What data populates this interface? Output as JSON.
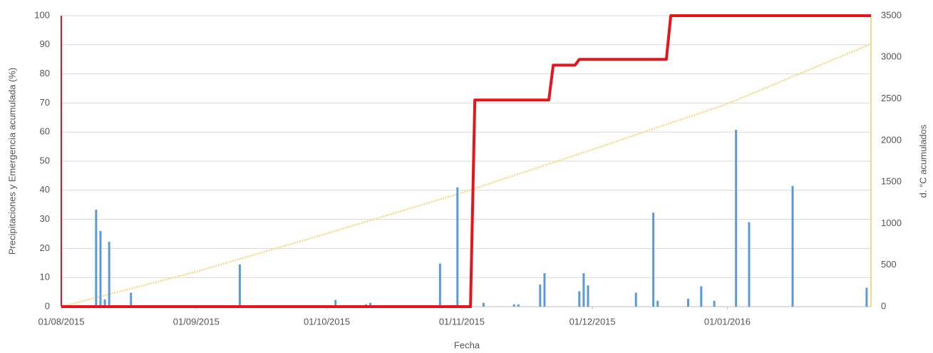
{
  "chart_data": {
    "type": "combo",
    "xlabel": "Fecha",
    "ylabel": "Precipitaciones y Emergencia acumulada (%)",
    "y2label": "d. °C acumulados",
    "xlim": [
      "01/08/2015",
      "03/02/2016"
    ],
    "xticks": [
      "01/08/2015",
      "01/09/2015",
      "01/10/2015",
      "01/11/2015",
      "01/12/2015",
      "01/01/2016"
    ],
    "ylim": [
      0,
      100
    ],
    "yticks": [
      0,
      10,
      20,
      30,
      40,
      50,
      60,
      70,
      80,
      90,
      100
    ],
    "y2lim": [
      0,
      3500
    ],
    "y2ticks": [
      0,
      500,
      1000,
      1500,
      2000,
      2500,
      3000,
      3500
    ],
    "grid": true,
    "series": [
      {
        "type": "bar",
        "color": "#5b9bd5",
        "x": [
          "09/08/2015",
          "10/08/2015",
          "11/08/2015",
          "12/08/2015",
          "17/08/2015",
          "11/09/2015",
          "03/10/2015",
          "10/10/2015",
          "11/10/2015",
          "27/10/2015",
          "31/10/2015",
          "06/11/2015",
          "13/11/2015",
          "14/11/2015",
          "19/11/2015",
          "20/11/2015",
          "28/11/2015",
          "29/11/2015",
          "30/11/2015",
          "11/12/2015",
          "15/12/2015",
          "16/12/2015",
          "23/12/2015",
          "26/12/2015",
          "29/12/2015",
          "03/01/2016",
          "06/01/2016",
          "16/01/2016",
          "02/02/2016"
        ],
        "values": [
          33.3,
          26,
          2.5,
          22.3,
          4.8,
          14.5,
          2.3,
          0.8,
          1.3,
          14.8,
          41,
          1.3,
          0.8,
          0.8,
          7.6,
          11.5,
          5.3,
          11.5,
          7.3,
          4.8,
          32.3,
          2,
          2.7,
          7,
          2,
          60.8,
          29,
          41.5,
          6.5
        ]
      },
      {
        "type": "line",
        "color": "#e8141c",
        "x": [
          "01/08/2015",
          "03/11/2015",
          "04/11/2015",
          "21/11/2015",
          "22/11/2015",
          "27/11/2015",
          "28/11/2015",
          "18/12/2015",
          "19/12/2015",
          "03/02/2016"
        ],
        "values": [
          0,
          0,
          71,
          71,
          83,
          83,
          85,
          85,
          100,
          100
        ]
      },
      {
        "type": "line",
        "color": "#f7d98a",
        "axis": "y2",
        "x": [
          "01/08/2015",
          "01/09/2015",
          "01/10/2015",
          "01/11/2015",
          "01/12/2015",
          "01/01/2016",
          "03/02/2016"
        ],
        "values": [
          0,
          420,
          880,
          1370,
          1890,
          2440,
          3160
        ]
      }
    ]
  }
}
